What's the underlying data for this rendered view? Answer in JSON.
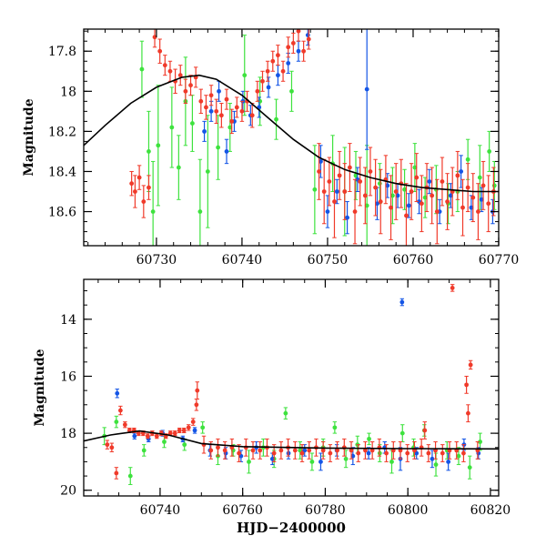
{
  "colors": {
    "green": "#3ee23e",
    "blue": "#1455e6",
    "red": "#f03a2a",
    "model": "#000000",
    "axis": "#000000"
  },
  "chart_data": [
    {
      "type": "scatter",
      "title": "",
      "xlabel": "",
      "ylabel": "Magnitude",
      "xlim": [
        60721.5,
        60770
      ],
      "ylim": [
        18.77,
        17.69
      ],
      "y_inverted": true,
      "xticks": [
        60730,
        60740,
        60750,
        60760,
        60770
      ],
      "yticks": [
        17.8,
        18,
        18.2,
        18.4,
        18.6
      ],
      "grid": false,
      "legend": "none",
      "model_curve": {
        "x": [
          60721.5,
          60724,
          60727,
          60730,
          60733,
          60735,
          60737,
          60740,
          60743,
          60746,
          60749,
          60752,
          60755,
          60758,
          60761,
          60764,
          60767,
          60770
        ],
        "y": [
          18.27,
          18.17,
          18.06,
          17.98,
          17.93,
          17.92,
          17.94,
          18.02,
          18.13,
          18.24,
          18.33,
          18.39,
          18.43,
          18.46,
          18.48,
          18.49,
          18.5,
          18.5
        ]
      },
      "series": [
        {
          "color": "green",
          "x": [
            60728.3,
            60729.1,
            60729.6,
            60730.2,
            60731.8,
            60732.6,
            60733.4,
            60734.2,
            60735.1,
            60736.0,
            60737.2,
            60738.6,
            60740.3,
            60742.1,
            60744.0,
            60745.8,
            60748.5,
            60750.6,
            60752.0,
            60753.3,
            60754.6,
            60756.1,
            60757.6,
            60759.0,
            60760.2,
            60761.4,
            60762.7,
            60764.1,
            60765.2,
            60766.4,
            60767.8,
            60768.9,
            60769.5
          ],
          "y": [
            17.89,
            18.3,
            18.6,
            18.27,
            18.18,
            18.38,
            18.05,
            18.16,
            18.6,
            18.4,
            18.28,
            18.18,
            17.92,
            18.05,
            18.14,
            18.0,
            18.49,
            18.36,
            18.5,
            18.42,
            18.57,
            18.46,
            18.52,
            18.49,
            18.38,
            18.53,
            18.49,
            18.56,
            18.5,
            18.34,
            18.43,
            18.3,
            18.47
          ],
          "err": [
            0.14,
            0.2,
            0.25,
            0.3,
            0.2,
            0.16,
            0.22,
            0.14,
            0.26,
            0.28,
            0.16,
            0.12,
            0.2,
            0.12,
            0.1,
            0.1,
            0.22,
            0.14,
            0.22,
            0.12,
            0.3,
            0.1,
            0.14,
            0.1,
            0.12,
            0.1,
            0.12,
            0.1,
            0.1,
            0.1,
            0.16,
            0.1,
            0.12
          ]
        },
        {
          "color": "blue",
          "x": [
            60735.6,
            60736.4,
            60737.3,
            60738.2,
            60739.1,
            60740.1,
            60741.0,
            60742.0,
            60743.1,
            60744.2,
            60745.4,
            60746.6,
            60747.7,
            60749.2,
            60750.0,
            60751.1,
            60752.3,
            60753.5,
            60754.6,
            60755.8,
            60757.0,
            60758.2,
            60759.5,
            60760.7,
            60761.9,
            60763.1,
            60764.4,
            60765.6,
            60766.8,
            60768.0,
            60769.3
          ],
          "y": [
            18.2,
            18.1,
            18.0,
            18.3,
            18.15,
            18.05,
            18.12,
            18.08,
            17.98,
            17.92,
            17.86,
            17.8,
            17.72,
            18.35,
            18.6,
            18.5,
            18.63,
            18.44,
            17.99,
            18.56,
            18.47,
            18.52,
            18.57,
            18.55,
            18.45,
            18.6,
            18.52,
            18.4,
            18.58,
            18.54,
            18.6
          ],
          "err": [
            0.05,
            0.05,
            0.05,
            0.06,
            0.05,
            0.05,
            0.05,
            0.05,
            0.05,
            0.05,
            0.05,
            0.05,
            0.05,
            0.08,
            0.08,
            0.06,
            0.08,
            0.06,
            0.3,
            0.08,
            0.06,
            0.06,
            0.06,
            0.06,
            0.06,
            0.06,
            0.06,
            0.08,
            0.06,
            0.06,
            0.06
          ]
        },
        {
          "color": "red",
          "x": [
            60727.1,
            60727.5,
            60728.0,
            60728.5,
            60729.1,
            60729.8,
            60730.4,
            60731.0,
            60731.6,
            60732.2,
            60732.8,
            60733.4,
            60734.0,
            60734.6,
            60735.2,
            60735.8,
            60736.4,
            60737.0,
            60737.6,
            60738.2,
            60738.8,
            60739.4,
            60740.0,
            60740.6,
            60741.2,
            60741.8,
            60742.4,
            60743.0,
            60743.6,
            60744.2,
            60744.8,
            60745.4,
            60746.0,
            60746.6,
            60747.2,
            60747.8,
            60749.0,
            60749.6,
            60750.2,
            60750.8,
            60751.4,
            60752.0,
            60752.6,
            60753.2,
            60753.8,
            60754.4,
            60755.0,
            60755.6,
            60756.2,
            60756.8,
            60757.4,
            60758.0,
            60758.6,
            60759.2,
            60759.8,
            60760.4,
            60761.0,
            60761.6,
            60762.2,
            60762.8,
            60763.4,
            60764.0,
            60764.6,
            60765.2,
            60765.8,
            60766.4,
            60767.0,
            60767.6,
            60768.2,
            60768.8,
            60769.4
          ],
          "y": [
            18.46,
            18.5,
            18.43,
            18.55,
            18.48,
            17.73,
            17.8,
            17.87,
            17.9,
            17.95,
            17.92,
            18.0,
            17.97,
            17.93,
            18.05,
            18.08,
            18.02,
            18.1,
            18.12,
            18.04,
            18.15,
            18.08,
            18.1,
            18.05,
            18.12,
            18.0,
            17.95,
            17.9,
            17.85,
            17.82,
            17.9,
            17.78,
            17.76,
            17.7,
            17.8,
            17.74,
            18.4,
            18.5,
            18.45,
            18.55,
            18.42,
            18.5,
            18.38,
            18.6,
            18.45,
            18.52,
            18.4,
            18.48,
            18.55,
            18.44,
            18.58,
            18.5,
            18.46,
            18.62,
            18.5,
            18.43,
            18.56,
            18.48,
            18.52,
            18.6,
            18.45,
            18.55,
            18.5,
            18.42,
            18.58,
            18.48,
            18.53,
            18.6,
            18.47,
            18.56,
            18.5
          ],
          "err": [
            0.06,
            0.08,
            0.06,
            0.08,
            0.06,
            0.05,
            0.06,
            0.05,
            0.05,
            0.06,
            0.05,
            0.06,
            0.05,
            0.05,
            0.06,
            0.06,
            0.05,
            0.06,
            0.06,
            0.05,
            0.06,
            0.05,
            0.05,
            0.05,
            0.06,
            0.05,
            0.05,
            0.05,
            0.05,
            0.05,
            0.05,
            0.05,
            0.05,
            0.05,
            0.05,
            0.05,
            0.14,
            0.16,
            0.12,
            0.18,
            0.12,
            0.14,
            0.12,
            0.16,
            0.12,
            0.14,
            0.12,
            0.14,
            0.16,
            0.12,
            0.16,
            0.14,
            0.12,
            0.16,
            0.14,
            0.12,
            0.14,
            0.12,
            0.14,
            0.16,
            0.12,
            0.14,
            0.12,
            0.12,
            0.14,
            0.12,
            0.12,
            0.14,
            0.12,
            0.14,
            0.12
          ]
        }
      ]
    },
    {
      "type": "scatter",
      "title": "",
      "xlabel": "HJD−2400000",
      "ylabel": "Magnitude",
      "xlim": [
        60721.5,
        60822
      ],
      "ylim": [
        20.2,
        12.6
      ],
      "y_inverted": true,
      "xticks": [
        60740,
        60760,
        60780,
        60800,
        60820
      ],
      "yticks": [
        14,
        16,
        18,
        20
      ],
      "grid": false,
      "legend": "none",
      "model_curve": {
        "x": [
          60721.5,
          60728,
          60735,
          60742,
          60750,
          60760,
          60780,
          60800,
          60822
        ],
        "y": [
          18.27,
          18.06,
          17.92,
          18.06,
          18.36,
          18.47,
          18.52,
          18.54,
          18.55
        ]
      },
      "series": [
        {
          "color": "green",
          "x": [
            60726.5,
            60729.4,
            60732.8,
            60736.1,
            60741.0,
            60745.9,
            60750.3,
            60754.0,
            60757.7,
            60761.5,
            60765.0,
            60767.6,
            60770.4,
            60773.9,
            60776.8,
            60779.5,
            60782.3,
            60785.0,
            60787.8,
            60790.6,
            60793.2,
            60796.1,
            60798.7,
            60801.4,
            60804.0,
            60806.8,
            60809.5,
            60812.3,
            60815.0,
            60817.5
          ],
          "y": [
            18.1,
            17.6,
            19.5,
            18.6,
            18.3,
            18.4,
            17.8,
            18.8,
            18.6,
            19.0,
            18.5,
            18.9,
            17.3,
            18.6,
            19.0,
            18.5,
            17.8,
            18.9,
            18.4,
            18.2,
            18.7,
            19.0,
            18.0,
            18.5,
            17.9,
            19.1,
            18.6,
            18.8,
            19.2,
            18.3
          ],
          "err": [
            0.3,
            0.2,
            0.3,
            0.2,
            0.2,
            0.2,
            0.2,
            0.3,
            0.2,
            0.4,
            0.3,
            0.3,
            0.2,
            0.3,
            0.3,
            0.3,
            0.2,
            0.3,
            0.3,
            0.2,
            0.3,
            0.4,
            0.3,
            0.3,
            0.2,
            0.4,
            0.3,
            0.3,
            0.4,
            0.3
          ]
        },
        {
          "color": "blue",
          "x": [
            60729.6,
            60733.8,
            60737.2,
            60740.6,
            60745.5,
            60748.4,
            60752.1,
            60755.9,
            60759.6,
            60763.3,
            60767.2,
            60771.1,
            60775.0,
            60778.9,
            60782.8,
            60786.7,
            60790.5,
            60794.4,
            60798.2,
            60798.6,
            60802.1,
            60805.9,
            60809.8,
            60813.6,
            60817.1
          ],
          "y": [
            16.6,
            18.1,
            18.2,
            18.0,
            18.2,
            17.9,
            18.6,
            18.7,
            18.8,
            18.5,
            18.9,
            18.7,
            18.6,
            19.0,
            18.6,
            18.8,
            18.7,
            18.5,
            18.9,
            13.4,
            18.7,
            18.9,
            19.0,
            18.4,
            18.7
          ],
          "err": [
            0.15,
            0.1,
            0.1,
            0.1,
            0.1,
            0.1,
            0.2,
            0.2,
            0.2,
            0.2,
            0.2,
            0.2,
            0.2,
            0.3,
            0.2,
            0.3,
            0.2,
            0.2,
            0.4,
            0.12,
            0.2,
            0.3,
            0.3,
            0.2,
            0.2
          ]
        },
        {
          "color": "red",
          "x": [
            60727.2,
            60728.3,
            60729.4,
            60730.4,
            60731.5,
            60732.6,
            60733.7,
            60734.8,
            60735.9,
            60737.0,
            60738.1,
            60739.2,
            60740.3,
            60741.4,
            60742.5,
            60743.6,
            60744.7,
            60745.8,
            60746.9,
            60748.0,
            60748.8,
            60749.0,
            60750.6,
            60752.3,
            60754.0,
            60755.7,
            60757.4,
            60759.1,
            60760.8,
            60762.5,
            60764.2,
            60765.9,
            60767.6,
            60769.3,
            60771.0,
            60772.7,
            60774.4,
            60776.1,
            60777.8,
            60779.5,
            60781.2,
            60782.9,
            60784.6,
            60786.3,
            60788.0,
            60789.7,
            60791.4,
            60793.1,
            60794.8,
            60796.5,
            60798.2,
            60799.9,
            60801.6,
            60803.3,
            60804.1,
            60805.0,
            60806.7,
            60808.4,
            60810.1,
            60810.8,
            60811.8,
            60813.5,
            60814.2,
            60814.6,
            60815.2,
            60816.9
          ],
          "y": [
            18.4,
            18.5,
            19.4,
            17.2,
            17.7,
            17.9,
            17.9,
            18.0,
            18.0,
            18.1,
            18.0,
            18.1,
            18.0,
            18.1,
            18.0,
            18.0,
            17.9,
            17.9,
            17.8,
            17.6,
            17.0,
            16.5,
            18.4,
            18.6,
            18.5,
            18.6,
            18.5,
            18.7,
            18.5,
            18.6,
            18.6,
            18.5,
            18.7,
            18.6,
            18.5,
            18.6,
            18.7,
            18.6,
            18.5,
            18.6,
            18.7,
            18.6,
            18.5,
            18.6,
            18.7,
            18.6,
            18.6,
            18.5,
            18.7,
            18.6,
            18.6,
            18.7,
            18.6,
            18.5,
            17.9,
            18.7,
            18.6,
            18.7,
            18.6,
            12.9,
            18.6,
            18.7,
            16.3,
            17.3,
            15.6,
            18.6
          ],
          "err": [
            0.15,
            0.15,
            0.2,
            0.15,
            0.1,
            0.08,
            0.08,
            0.08,
            0.08,
            0.08,
            0.08,
            0.08,
            0.08,
            0.08,
            0.08,
            0.08,
            0.08,
            0.08,
            0.1,
            0.12,
            0.2,
            0.3,
            0.3,
            0.3,
            0.3,
            0.3,
            0.3,
            0.3,
            0.3,
            0.3,
            0.3,
            0.3,
            0.3,
            0.3,
            0.3,
            0.3,
            0.3,
            0.3,
            0.3,
            0.3,
            0.3,
            0.3,
            0.3,
            0.3,
            0.3,
            0.3,
            0.3,
            0.3,
            0.3,
            0.3,
            0.3,
            0.3,
            0.3,
            0.3,
            0.3,
            0.3,
            0.3,
            0.3,
            0.3,
            0.12,
            0.3,
            0.3,
            0.3,
            0.3,
            0.15,
            0.3
          ]
        }
      ]
    }
  ]
}
